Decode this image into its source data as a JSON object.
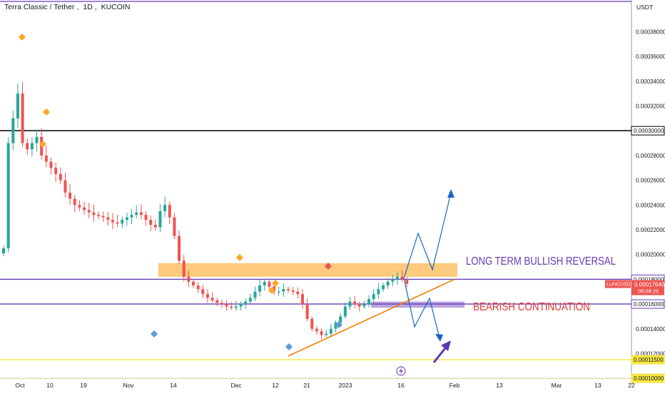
{
  "header": {
    "symbol_title": "Terra Classic / Tether",
    "interval": "1D",
    "exchange": "KUCOIN"
  },
  "price_axis": {
    "currency": "USDT",
    "tick_labels": [
      "0.00038000",
      "0.00036000",
      "0.00034000",
      "0.00032000",
      "0.00028000",
      "0.00026000",
      "0.00024000",
      "0.00022000",
      "0.00020000",
      "0.00014000",
      "0.00012000"
    ]
  },
  "time_axis": {
    "tick_labels": [
      "Oct",
      "10",
      "19",
      "Nov",
      "14",
      "Dec",
      "12",
      "21",
      "2023",
      "16",
      "Feb",
      "13",
      "Mar",
      "13",
      "22"
    ]
  },
  "levels": [
    {
      "price": 0.0003,
      "label": "0.00030000",
      "color": "#000000",
      "badge_style": "dark"
    },
    {
      "price": 0.00018,
      "label": "0.00018000",
      "color": "#673ab7",
      "badge_style": "outline"
    },
    {
      "price": 0.00016,
      "label": "0.00016000",
      "color": "#673ab7",
      "badge_style": "outline"
    },
    {
      "price": 0.000115,
      "label": "0.00011500",
      "color": "#f5e642",
      "badge_style": "yellow"
    },
    {
      "price": 0.0001,
      "label": "0.00010000",
      "color": "#f5e642",
      "badge_style": "yellow"
    }
  ],
  "current_price": {
    "ticker": "LUNCUSDT",
    "price_label": "0.00017640",
    "countdown": "08:08:25",
    "color": "#ef5350"
  },
  "annotations": {
    "bullish_text": "LONG TERM BULLISH REVERSAL",
    "bullish_color": "#673ab7",
    "bearish_text": "BEARISH CONTINUATION",
    "bearish_color": "#e53935"
  },
  "colors": {
    "up": "#26a69a",
    "down": "#ef5350",
    "resistance_zone": "#ffa726",
    "support_zone": "#9575cd",
    "trendline": "#f57c00",
    "projection": "#1565c0",
    "axis_text": "#131722"
  },
  "chart_data": {
    "type": "candlestick",
    "title": "Terra Classic / Tether, 1D, KUCOIN",
    "ylim": [
      9.55e-05,
      0.000405
    ],
    "x": [
      "Oct",
      "10",
      "19",
      "Nov",
      "14",
      "Dec",
      "12",
      "21",
      "2023",
      "16",
      "Feb",
      "13",
      "Mar",
      "13",
      "22"
    ],
    "series": [
      {
        "name": "LUNCUSDT",
        "approx_closes": [
          0.000205,
          0.00029,
          0.00031,
          0.00033,
          0.00029,
          0.000285,
          0.00029,
          0.000295,
          0.00028,
          0.000275,
          0.00027,
          0.000265,
          0.00026,
          0.00025,
          0.000245,
          0.00024,
          0.000238,
          0.000236,
          0.000234,
          0.000232,
          0.000231,
          0.00023,
          0.000228,
          0.000226,
          0.000225,
          0.000228,
          0.00023,
          0.000232,
          0.000234,
          0.000232,
          0.000228,
          0.000224,
          0.000222,
          0.000235,
          0.00024,
          0.00023,
          0.000215,
          0.000195,
          0.000182,
          0.000178,
          0.000175,
          0.000172,
          0.000168,
          0.000165,
          0.000163,
          0.000161,
          0.00016,
          0.000158,
          0.000157,
          0.000158,
          0.00016,
          0.000162,
          0.000165,
          0.00017,
          0.000175,
          0.000178,
          0.000174,
          0.00017,
          0.00017,
          0.000172,
          0.000171,
          0.00017,
          0.000168,
          0.00016,
          0.000148,
          0.00014,
          0.000138,
          0.000135,
          0.000136,
          0.00014,
          0.000145,
          0.00015,
          0.000158,
          0.000162,
          0.00016,
          0.000158,
          0.00016,
          0.000164,
          0.000168,
          0.000172,
          0.000175,
          0.000178,
          0.00018,
          0.000182,
          0.00018,
          0.0001764
        ]
      }
    ],
    "horizontal_levels": [
      0.0003,
      0.00018,
      0.00016,
      0.000115,
      0.0001
    ],
    "resistance_zone": [
      0.000182,
      0.000193
    ],
    "support_zone": [
      0.000157,
      0.000162
    ],
    "trendline": [
      [
        0.000118,
        0.00018
      ]
    ],
    "grid": false,
    "legend": "none"
  }
}
